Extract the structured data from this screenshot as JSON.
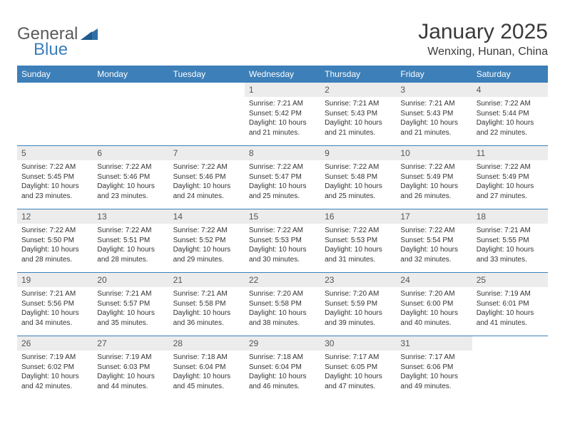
{
  "brand": {
    "name_part1": "General",
    "name_part2": "Blue",
    "shape_color": "#2f6fa8"
  },
  "title": {
    "month_year": "January 2025",
    "location": "Wenxing, Hunan, China"
  },
  "colors": {
    "header_bg": "#3d7fb8",
    "daynum_bg": "#ececec",
    "border": "#3d7fb8",
    "text": "#333333"
  },
  "typography": {
    "title_fontsize": 30,
    "location_fontsize": 16,
    "dayhead_fontsize": 12,
    "daynum_fontsize": 12,
    "body_fontsize": 10
  },
  "day_names": [
    "Sunday",
    "Monday",
    "Tuesday",
    "Wednesday",
    "Thursday",
    "Friday",
    "Saturday"
  ],
  "weeks": [
    [
      {
        "n": "",
        "sr": "",
        "ss": "",
        "dl": ""
      },
      {
        "n": "",
        "sr": "",
        "ss": "",
        "dl": ""
      },
      {
        "n": "",
        "sr": "",
        "ss": "",
        "dl": ""
      },
      {
        "n": "1",
        "sr": "Sunrise: 7:21 AM",
        "ss": "Sunset: 5:42 PM",
        "dl": "Daylight: 10 hours and 21 minutes."
      },
      {
        "n": "2",
        "sr": "Sunrise: 7:21 AM",
        "ss": "Sunset: 5:43 PM",
        "dl": "Daylight: 10 hours and 21 minutes."
      },
      {
        "n": "3",
        "sr": "Sunrise: 7:21 AM",
        "ss": "Sunset: 5:43 PM",
        "dl": "Daylight: 10 hours and 21 minutes."
      },
      {
        "n": "4",
        "sr": "Sunrise: 7:22 AM",
        "ss": "Sunset: 5:44 PM",
        "dl": "Daylight: 10 hours and 22 minutes."
      }
    ],
    [
      {
        "n": "5",
        "sr": "Sunrise: 7:22 AM",
        "ss": "Sunset: 5:45 PM",
        "dl": "Daylight: 10 hours and 23 minutes."
      },
      {
        "n": "6",
        "sr": "Sunrise: 7:22 AM",
        "ss": "Sunset: 5:46 PM",
        "dl": "Daylight: 10 hours and 23 minutes."
      },
      {
        "n": "7",
        "sr": "Sunrise: 7:22 AM",
        "ss": "Sunset: 5:46 PM",
        "dl": "Daylight: 10 hours and 24 minutes."
      },
      {
        "n": "8",
        "sr": "Sunrise: 7:22 AM",
        "ss": "Sunset: 5:47 PM",
        "dl": "Daylight: 10 hours and 25 minutes."
      },
      {
        "n": "9",
        "sr": "Sunrise: 7:22 AM",
        "ss": "Sunset: 5:48 PM",
        "dl": "Daylight: 10 hours and 25 minutes."
      },
      {
        "n": "10",
        "sr": "Sunrise: 7:22 AM",
        "ss": "Sunset: 5:49 PM",
        "dl": "Daylight: 10 hours and 26 minutes."
      },
      {
        "n": "11",
        "sr": "Sunrise: 7:22 AM",
        "ss": "Sunset: 5:49 PM",
        "dl": "Daylight: 10 hours and 27 minutes."
      }
    ],
    [
      {
        "n": "12",
        "sr": "Sunrise: 7:22 AM",
        "ss": "Sunset: 5:50 PM",
        "dl": "Daylight: 10 hours and 28 minutes."
      },
      {
        "n": "13",
        "sr": "Sunrise: 7:22 AM",
        "ss": "Sunset: 5:51 PM",
        "dl": "Daylight: 10 hours and 28 minutes."
      },
      {
        "n": "14",
        "sr": "Sunrise: 7:22 AM",
        "ss": "Sunset: 5:52 PM",
        "dl": "Daylight: 10 hours and 29 minutes."
      },
      {
        "n": "15",
        "sr": "Sunrise: 7:22 AM",
        "ss": "Sunset: 5:53 PM",
        "dl": "Daylight: 10 hours and 30 minutes."
      },
      {
        "n": "16",
        "sr": "Sunrise: 7:22 AM",
        "ss": "Sunset: 5:53 PM",
        "dl": "Daylight: 10 hours and 31 minutes."
      },
      {
        "n": "17",
        "sr": "Sunrise: 7:22 AM",
        "ss": "Sunset: 5:54 PM",
        "dl": "Daylight: 10 hours and 32 minutes."
      },
      {
        "n": "18",
        "sr": "Sunrise: 7:21 AM",
        "ss": "Sunset: 5:55 PM",
        "dl": "Daylight: 10 hours and 33 minutes."
      }
    ],
    [
      {
        "n": "19",
        "sr": "Sunrise: 7:21 AM",
        "ss": "Sunset: 5:56 PM",
        "dl": "Daylight: 10 hours and 34 minutes."
      },
      {
        "n": "20",
        "sr": "Sunrise: 7:21 AM",
        "ss": "Sunset: 5:57 PM",
        "dl": "Daylight: 10 hours and 35 minutes."
      },
      {
        "n": "21",
        "sr": "Sunrise: 7:21 AM",
        "ss": "Sunset: 5:58 PM",
        "dl": "Daylight: 10 hours and 36 minutes."
      },
      {
        "n": "22",
        "sr": "Sunrise: 7:20 AM",
        "ss": "Sunset: 5:58 PM",
        "dl": "Daylight: 10 hours and 38 minutes."
      },
      {
        "n": "23",
        "sr": "Sunrise: 7:20 AM",
        "ss": "Sunset: 5:59 PM",
        "dl": "Daylight: 10 hours and 39 minutes."
      },
      {
        "n": "24",
        "sr": "Sunrise: 7:20 AM",
        "ss": "Sunset: 6:00 PM",
        "dl": "Daylight: 10 hours and 40 minutes."
      },
      {
        "n": "25",
        "sr": "Sunrise: 7:19 AM",
        "ss": "Sunset: 6:01 PM",
        "dl": "Daylight: 10 hours and 41 minutes."
      }
    ],
    [
      {
        "n": "26",
        "sr": "Sunrise: 7:19 AM",
        "ss": "Sunset: 6:02 PM",
        "dl": "Daylight: 10 hours and 42 minutes."
      },
      {
        "n": "27",
        "sr": "Sunrise: 7:19 AM",
        "ss": "Sunset: 6:03 PM",
        "dl": "Daylight: 10 hours and 44 minutes."
      },
      {
        "n": "28",
        "sr": "Sunrise: 7:18 AM",
        "ss": "Sunset: 6:04 PM",
        "dl": "Daylight: 10 hours and 45 minutes."
      },
      {
        "n": "29",
        "sr": "Sunrise: 7:18 AM",
        "ss": "Sunset: 6:04 PM",
        "dl": "Daylight: 10 hours and 46 minutes."
      },
      {
        "n": "30",
        "sr": "Sunrise: 7:17 AM",
        "ss": "Sunset: 6:05 PM",
        "dl": "Daylight: 10 hours and 47 minutes."
      },
      {
        "n": "31",
        "sr": "Sunrise: 7:17 AM",
        "ss": "Sunset: 6:06 PM",
        "dl": "Daylight: 10 hours and 49 minutes."
      },
      {
        "n": "",
        "sr": "",
        "ss": "",
        "dl": ""
      }
    ]
  ]
}
